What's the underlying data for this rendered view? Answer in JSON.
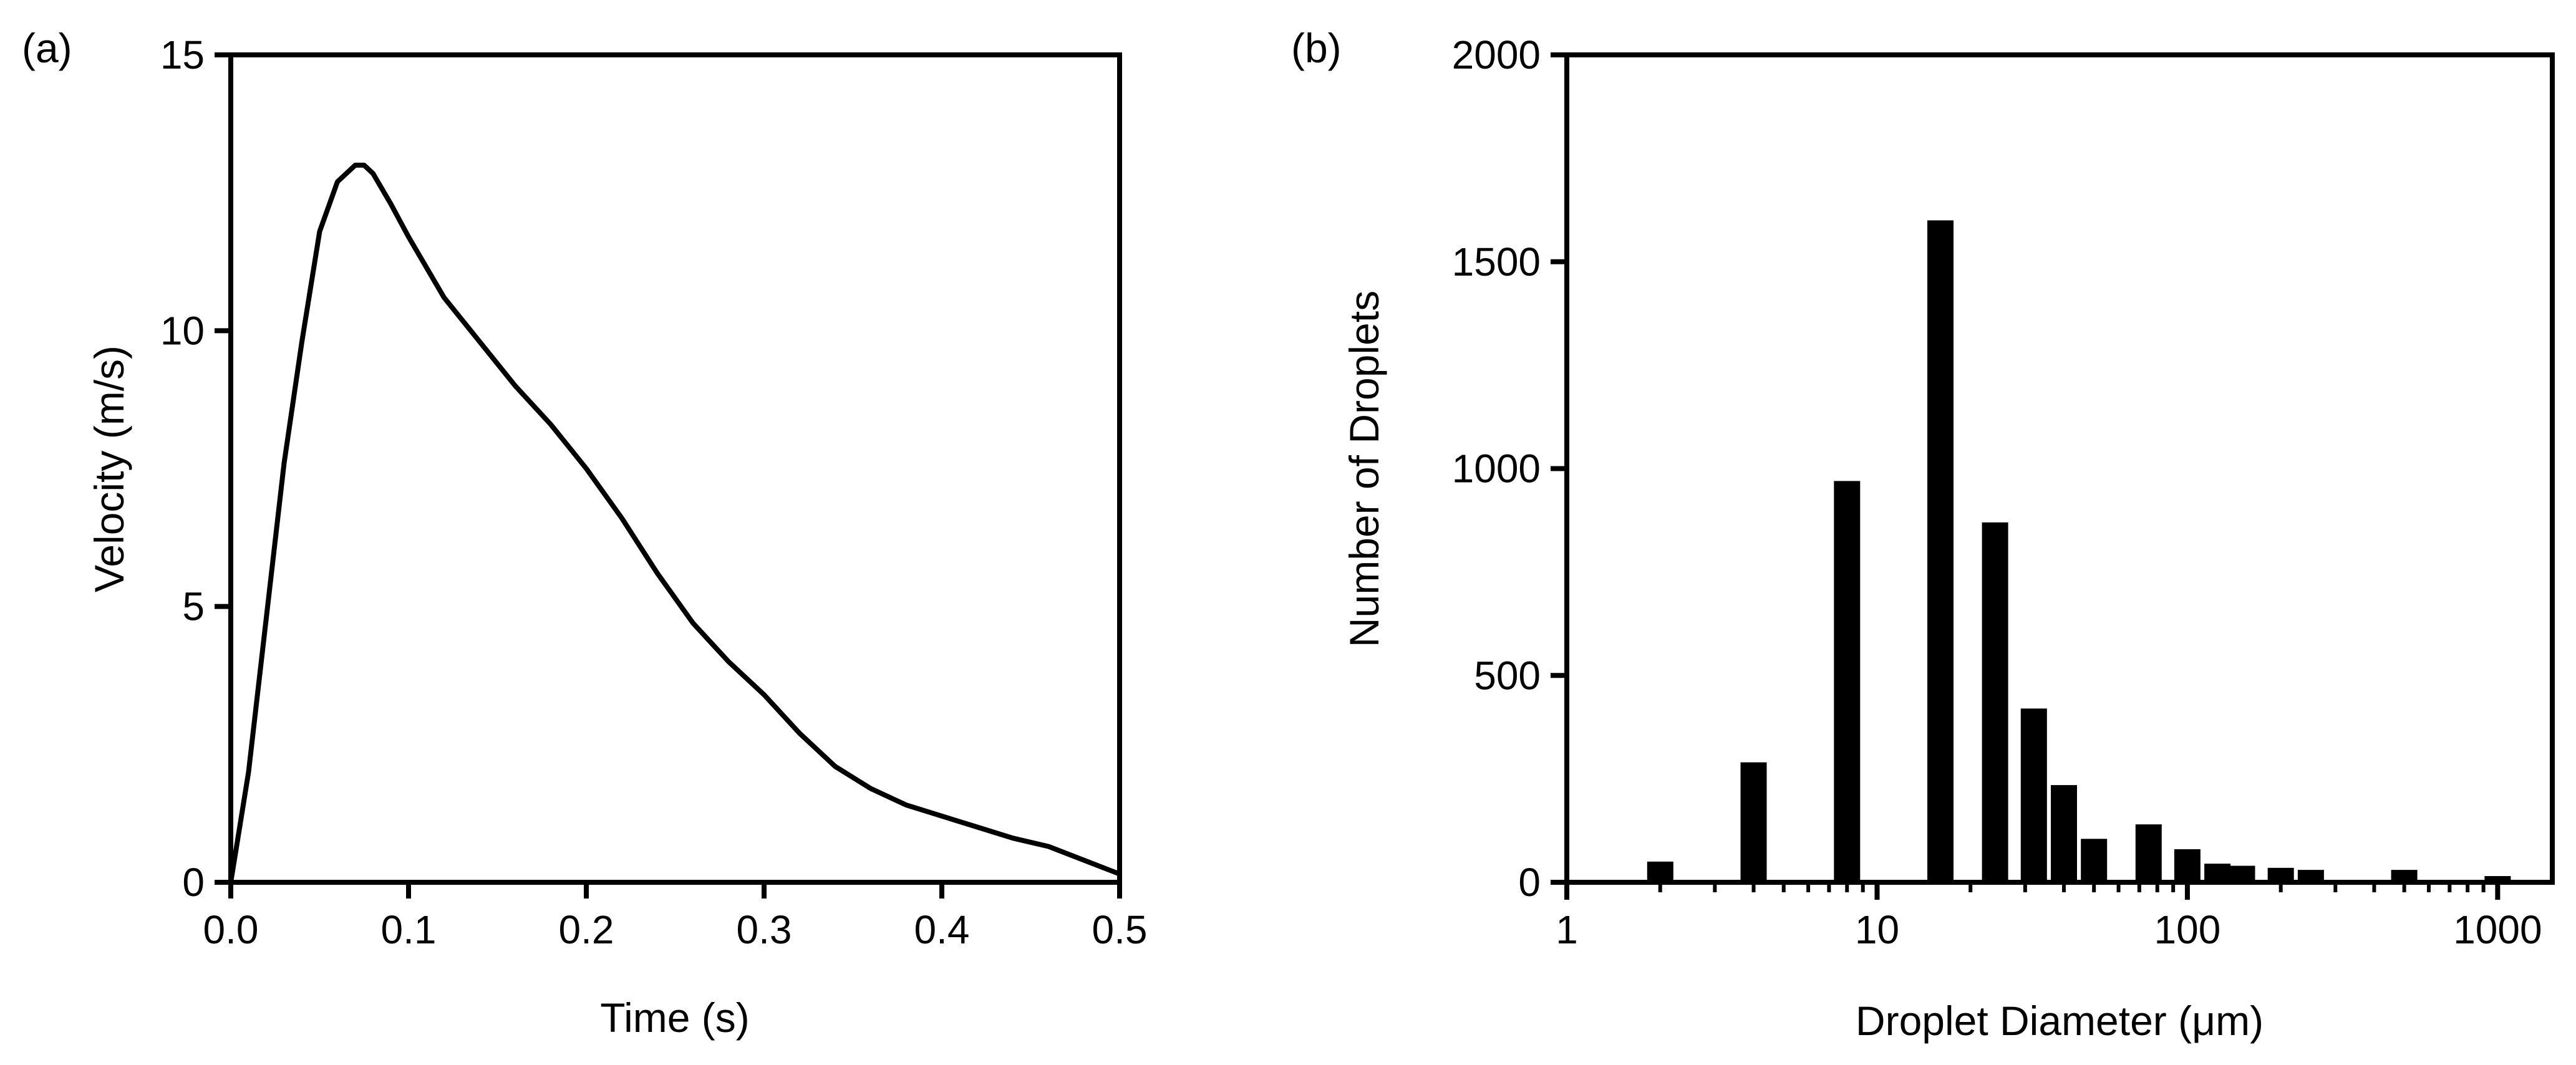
{
  "chart_data": [
    {
      "panel": "(a)",
      "type": "line",
      "xlabel": "Time (s)",
      "ylabel": "Velocity (m/s)",
      "xlim": [
        0,
        0.5
      ],
      "ylim": [
        0,
        15
      ],
      "xticks": [
        "0.0",
        "0.1",
        "0.2",
        "0.3",
        "0.4",
        "0.5"
      ],
      "yticks": [
        "0",
        "5",
        "10",
        "15"
      ],
      "grid": false,
      "series": [
        {
          "color": "#000000",
          "x": [
            0.0,
            0.01,
            0.02,
            0.03,
            0.04,
            0.05,
            0.06,
            0.07,
            0.075,
            0.08,
            0.09,
            0.1,
            0.12,
            0.14,
            0.16,
            0.18,
            0.2,
            0.22,
            0.24,
            0.26,
            0.28,
            0.3,
            0.32,
            0.34,
            0.36,
            0.38,
            0.4,
            0.42,
            0.44,
            0.46,
            0.48,
            0.5
          ],
          "y": [
            0.0,
            2.0,
            4.8,
            7.6,
            9.8,
            11.8,
            12.7,
            13.0,
            13.0,
            12.85,
            12.3,
            11.7,
            10.6,
            9.8,
            9.0,
            8.3,
            7.5,
            6.6,
            5.6,
            4.7,
            4.0,
            3.4,
            2.7,
            2.1,
            1.7,
            1.4,
            1.2,
            1.0,
            0.8,
            0.65,
            0.4,
            0.15
          ]
        }
      ]
    },
    {
      "panel": "(b)",
      "type": "bar",
      "xlabel": "Droplet Diameter (μm)",
      "ylabel": "Number of Droplets",
      "xscale": "log",
      "xlim": [
        1,
        1500
      ],
      "ylim": [
        0,
        2000
      ],
      "xticks": [
        "1",
        "10",
        "100",
        "1000"
      ],
      "yticks": [
        "0",
        "500",
        "1000",
        "1500",
        "2000"
      ],
      "grid": false,
      "bars": [
        {
          "x": 2,
          "value": 50
        },
        {
          "x": 4,
          "value": 290
        },
        {
          "x": 8,
          "value": 970
        },
        {
          "x": 16,
          "value": 1600
        },
        {
          "x": 24,
          "value": 870
        },
        {
          "x": 32,
          "value": 420
        },
        {
          "x": 40,
          "value": 235
        },
        {
          "x": 50,
          "value": 105
        },
        {
          "x": 75,
          "value": 140
        },
        {
          "x": 100,
          "value": 80
        },
        {
          "x": 125,
          "value": 45
        },
        {
          "x": 150,
          "value": 40
        },
        {
          "x": 200,
          "value": 35
        },
        {
          "x": 250,
          "value": 30
        },
        {
          "x": 500,
          "value": 30
        },
        {
          "x": 1000,
          "value": 15
        }
      ]
    }
  ]
}
